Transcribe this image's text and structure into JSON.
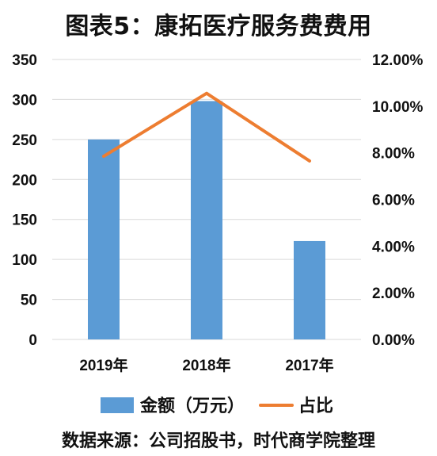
{
  "title": "图表5：康拓医疗服务费费用",
  "source": "数据来源：公司招股书，时代商学院整理",
  "colors": {
    "bar": "#5B9BD5",
    "line": "#ED7D31",
    "grid": "#D9D9D9"
  },
  "chart_data": {
    "type": "bar",
    "title": "图表5：康拓医疗服务费费用",
    "categories": [
      "2019年",
      "2018年",
      "2017年"
    ],
    "series": [
      {
        "name": "金额（万元）",
        "type": "bar",
        "axis": "left",
        "values": [
          250,
          298,
          123
        ]
      },
      {
        "name": "占比",
        "type": "line",
        "axis": "right",
        "values": [
          0.0785,
          0.1055,
          0.0765
        ]
      }
    ],
    "y_left": {
      "min": 0,
      "max": 350,
      "step": 50,
      "tick_labels": [
        "0",
        "50",
        "100",
        "150",
        "200",
        "250",
        "300",
        "350"
      ]
    },
    "y_right": {
      "min": 0,
      "max": 0.12,
      "step": 0.02,
      "tick_labels": [
        "0.00%",
        "2.00%",
        "4.00%",
        "6.00%",
        "8.00%",
        "10.00%",
        "12.00%"
      ]
    },
    "grid": true,
    "legend": {
      "position": "bottom",
      "items": [
        "金额（万元）",
        "占比"
      ]
    }
  }
}
